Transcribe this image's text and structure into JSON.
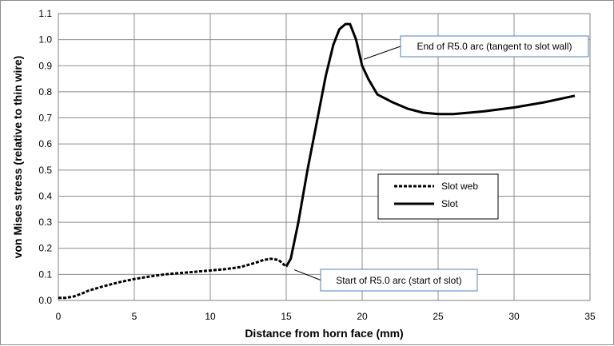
{
  "chart_data": {
    "type": "line",
    "xlabel": "Distance from horn face (mm)",
    "ylabel": "von Mises stress (relative to thin wire)",
    "xlim": [
      0,
      35
    ],
    "ylim": [
      0,
      1.1
    ],
    "x_ticks": [
      "0",
      "5",
      "10",
      "15",
      "20",
      "25",
      "30",
      "35"
    ],
    "y_ticks": [
      "0.0",
      "0.1",
      "0.2",
      "0.3",
      "0.4",
      "0.5",
      "0.6",
      "0.7",
      "0.8",
      "0.9",
      "1.0",
      "1.1"
    ],
    "grid": true,
    "legend_position": "center-right",
    "series": [
      {
        "name": "Slot web",
        "style": "dashed",
        "color": "#000000",
        "points": [
          [
            0,
            0.01
          ],
          [
            0.5,
            0.01
          ],
          [
            1,
            0.015
          ],
          [
            1.5,
            0.025
          ],
          [
            2,
            0.038
          ],
          [
            3,
            0.055
          ],
          [
            4,
            0.07
          ],
          [
            5,
            0.082
          ],
          [
            6,
            0.092
          ],
          [
            7,
            0.1
          ],
          [
            8,
            0.105
          ],
          [
            9,
            0.11
          ],
          [
            10,
            0.115
          ],
          [
            11,
            0.12
          ],
          [
            12,
            0.128
          ],
          [
            13,
            0.145
          ],
          [
            13.5,
            0.155
          ],
          [
            14,
            0.16
          ],
          [
            14.5,
            0.155
          ],
          [
            15,
            0.13
          ]
        ]
      },
      {
        "name": "Slot",
        "style": "solid",
        "color": "#000000",
        "points": [
          [
            15,
            0.13
          ],
          [
            15.3,
            0.16
          ],
          [
            15.8,
            0.3
          ],
          [
            16.4,
            0.5
          ],
          [
            17,
            0.68
          ],
          [
            17.6,
            0.86
          ],
          [
            18.1,
            0.98
          ],
          [
            18.5,
            1.04
          ],
          [
            18.9,
            1.06
          ],
          [
            19.2,
            1.06
          ],
          [
            19.6,
            1.0
          ],
          [
            20,
            0.9
          ],
          [
            20.4,
            0.85
          ],
          [
            21,
            0.79
          ],
          [
            22,
            0.76
          ],
          [
            23,
            0.735
          ],
          [
            24,
            0.72
          ],
          [
            25,
            0.715
          ],
          [
            26,
            0.715
          ],
          [
            28,
            0.725
          ],
          [
            30,
            0.74
          ],
          [
            32,
            0.76
          ],
          [
            34,
            0.785
          ]
        ]
      }
    ],
    "annotations": [
      {
        "text": "End of R5.0 arc (tangent to slot wall)",
        "x": 20,
        "y": 0.9
      },
      {
        "text": "Start of R5.0 arc (start of slot)",
        "x": 15,
        "y": 0.13
      }
    ]
  }
}
